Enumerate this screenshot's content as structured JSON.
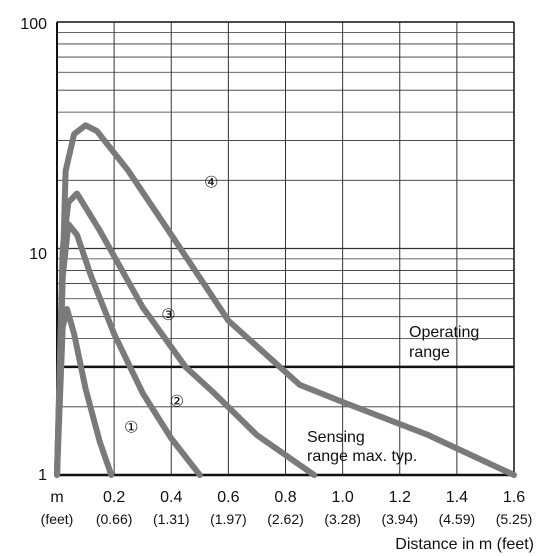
{
  "chart_data": {
    "type": "line",
    "x_scale": "linear",
    "y_scale": "log",
    "xlim": [
      0,
      1.6
    ],
    "ylim": [
      1,
      100
    ],
    "grid": true,
    "x_tick_labels": [
      "0.2",
      "0.4",
      "0.6",
      "0.8",
      "1.0",
      "1.2",
      "1.4",
      "1.6"
    ],
    "x_tick_labels_feet": [
      "(0.66)",
      "(1.31)",
      "(1.97)",
      "(2.62)",
      "(3.28)",
      "(3.94)",
      "(4.59)",
      "(5.25)"
    ],
    "x_unit_label": "m",
    "x_unit_label_feet": "(feet)",
    "y_tick_labels": [
      "1",
      "10",
      "100"
    ],
    "xlabel": "Distance in m (feet)",
    "operating_range_y": 3,
    "annotations": {
      "operating_range": [
        "Operating",
        "range"
      ],
      "sensing_range": [
        "Sensing",
        "range max. typ."
      ]
    },
    "series": [
      {
        "name": "①",
        "x": [
          0,
          0.02,
          0.035,
          0.06,
          0.1,
          0.15,
          0.19
        ],
        "y": [
          1,
          4.5,
          5.4,
          4.2,
          2.4,
          1.4,
          1
        ]
      },
      {
        "name": "②",
        "x": [
          0,
          0.02,
          0.04,
          0.07,
          0.12,
          0.2,
          0.3,
          0.4,
          0.5
        ],
        "y": [
          1,
          7.5,
          12.8,
          11.5,
          7.5,
          4.2,
          2.3,
          1.45,
          1
        ]
      },
      {
        "name": "③",
        "x": [
          0,
          0.02,
          0.04,
          0.07,
          0.15,
          0.3,
          0.45,
          0.55,
          0.7,
          0.9
        ],
        "y": [
          1,
          10,
          16,
          17.5,
          12,
          5.5,
          3,
          2.3,
          1.5,
          1
        ]
      },
      {
        "name": "④",
        "x": [
          0,
          0.03,
          0.06,
          0.1,
          0.14,
          0.25,
          0.4,
          0.6,
          0.85,
          1.0,
          1.3,
          1.6
        ],
        "y": [
          1,
          22,
          32,
          35,
          33,
          22,
          11.5,
          4.8,
          2.5,
          2.1,
          1.5,
          1
        ]
      }
    ],
    "series_label_positions": [
      {
        "x": 0.26,
        "y": 1.65
      },
      {
        "x": 0.42,
        "y": 2.15
      },
      {
        "x": 0.39,
        "y": 5.2
      },
      {
        "x": 0.54,
        "y": 20
      }
    ],
    "colors": {
      "curve": "#7a7a7a",
      "grid": "#333333",
      "frame": "#111111",
      "operating_line": "#111111"
    }
  }
}
